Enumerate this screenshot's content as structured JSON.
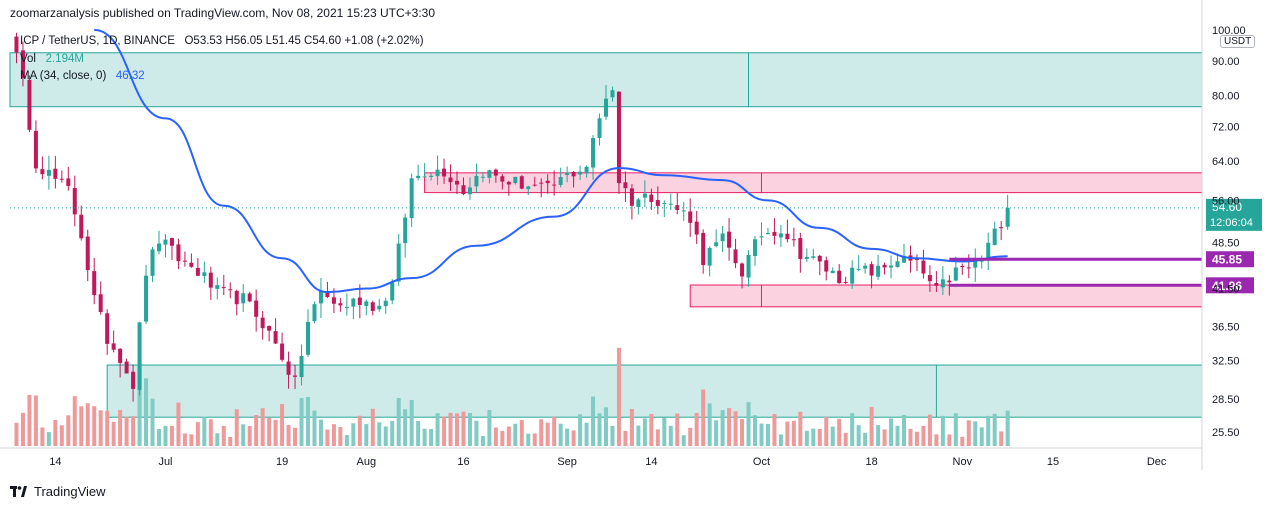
{
  "header": {
    "published": "zoomarzanalysis published on TradingView.com, Nov 08, 2021 15:23 UTC+3:30"
  },
  "legend": {
    "symbol": "ICP / TetherUS, 1D, BINANCE",
    "ohlc": "O53.53  H56.05  L51.45  C54.60  +1.08 (+2.02%)",
    "vol_label": "Vol",
    "vol_value": "2.194M",
    "ma_label": "MA (34, close, 0)",
    "ma_value": "46.32"
  },
  "price_badge": {
    "price": "54.60",
    "countdown": "12:06:04"
  },
  "currency_button": "USDT",
  "footer": {
    "brand": "TradingView"
  },
  "colors": {
    "up": "#26a69a",
    "down": "#c2185b",
    "vol_up": "#80cbc4",
    "vol_down": "#ef9a9a",
    "ma": "#2962ff",
    "support": "#9c27b0",
    "zone_green": "#26a69a",
    "zone_pink": "#e91e63"
  },
  "chart_data": {
    "type": "candlestick",
    "y_scale": "log",
    "ylim": [
      24.3,
      102
    ],
    "y_ticks": [
      "100.00",
      "90.00",
      "80.00",
      "72.00",
      "64.00",
      "56.00",
      "48.50",
      "41.50",
      "36.50",
      "32.50",
      "28.50",
      "25.50"
    ],
    "x_ticks": [
      "14",
      "Jul",
      "19",
      "Aug",
      "16",
      "Sep",
      "14",
      "Oct",
      "18",
      "Nov",
      "15",
      "Dec"
    ],
    "x_range": [
      "2021-06-07",
      "2021-12-08"
    ],
    "last_price": 54.6,
    "horizontal_levels": [
      {
        "label": "45.85",
        "value": 45.85,
        "color": "#9c27b0"
      },
      {
        "label": "41.96",
        "value": 41.96,
        "color": "#9c27b0"
      }
    ],
    "zones": [
      {
        "color": "green",
        "from": "2021-06-07",
        "to": "2021-12-08",
        "low": 77.0,
        "high": 92.5,
        "split": "2021-09-29"
      },
      {
        "color": "pink",
        "from": "2021-08-10",
        "to": "2021-12-08",
        "low": 57.5,
        "high": 61.5,
        "split": "2021-10-01"
      },
      {
        "color": "pink",
        "from": "2021-09-20",
        "to": "2021-12-08",
        "low": 39.0,
        "high": 42.0,
        "split": "2021-10-01"
      },
      {
        "color": "green",
        "from": "2021-06-22",
        "to": "2021-12-08",
        "low": 26.8,
        "high": 32.0,
        "split": "2021-10-28"
      }
    ],
    "close_anchors": [
      [
        "2021-06-07",
        100
      ],
      [
        "2021-06-09",
        83
      ],
      [
        "2021-06-11",
        64
      ],
      [
        "2021-06-14",
        60
      ],
      [
        "2021-06-16",
        58
      ],
      [
        "2021-06-18",
        50
      ],
      [
        "2021-06-20",
        40
      ],
      [
        "2021-06-22",
        35
      ],
      [
        "2021-06-24",
        33
      ],
      [
        "2021-06-26",
        30
      ],
      [
        "2021-06-28",
        44
      ],
      [
        "2021-06-30",
        49
      ],
      [
        "2021-07-03",
        46
      ],
      [
        "2021-07-06",
        44
      ],
      [
        "2021-07-09",
        41
      ],
      [
        "2021-07-13",
        40
      ],
      [
        "2021-07-16",
        37
      ],
      [
        "2021-07-19",
        33
      ],
      [
        "2021-07-21",
        30
      ],
      [
        "2021-07-23",
        37
      ],
      [
        "2021-07-25",
        41
      ],
      [
        "2021-07-28",
        39
      ],
      [
        "2021-07-31",
        40
      ],
      [
        "2021-08-03",
        39
      ],
      [
        "2021-08-05",
        42
      ],
      [
        "2021-08-08",
        60
      ],
      [
        "2021-08-10",
        62
      ],
      [
        "2021-08-13",
        62
      ],
      [
        "2021-08-16",
        58
      ],
      [
        "2021-08-19",
        62
      ],
      [
        "2021-08-22",
        60
      ],
      [
        "2021-08-26",
        59
      ],
      [
        "2021-08-29",
        58
      ],
      [
        "2021-09-01",
        61
      ],
      [
        "2021-09-04",
        63
      ],
      [
        "2021-09-07",
        80
      ],
      [
        "2021-09-08",
        82
      ],
      [
        "2021-09-09",
        60
      ],
      [
        "2021-09-11",
        56
      ],
      [
        "2021-09-14",
        57
      ],
      [
        "2021-09-17",
        55
      ],
      [
        "2021-09-20",
        53
      ],
      [
        "2021-09-22",
        46
      ],
      [
        "2021-09-25",
        49
      ],
      [
        "2021-09-28",
        44
      ],
      [
        "2021-10-01",
        50
      ],
      [
        "2021-10-04",
        51
      ],
      [
        "2021-10-07",
        47
      ],
      [
        "2021-10-10",
        45
      ],
      [
        "2021-10-13",
        43
      ],
      [
        "2021-10-16",
        44
      ],
      [
        "2021-10-19",
        44
      ],
      [
        "2021-10-22",
        46
      ],
      [
        "2021-10-25",
        45
      ],
      [
        "2021-10-28",
        41
      ],
      [
        "2021-10-31",
        44
      ],
      [
        "2021-11-02",
        44.5
      ],
      [
        "2021-11-04",
        46
      ],
      [
        "2021-11-06",
        50
      ],
      [
        "2021-11-08",
        54.6
      ]
    ],
    "ma_anchors": [
      [
        "2021-06-20",
        100
      ],
      [
        "2021-07-01",
        74
      ],
      [
        "2021-07-10",
        55
      ],
      [
        "2021-07-19",
        46
      ],
      [
        "2021-07-26",
        41
      ],
      [
        "2021-08-01",
        41.5
      ],
      [
        "2021-08-08",
        43
      ],
      [
        "2021-08-18",
        48
      ],
      [
        "2021-08-30",
        53
      ],
      [
        "2021-09-09",
        62.5
      ],
      [
        "2021-09-16",
        61
      ],
      [
        "2021-09-25",
        60
      ],
      [
        "2021-10-02",
        56
      ],
      [
        "2021-10-10",
        51
      ],
      [
        "2021-10-18",
        47.5
      ],
      [
        "2021-10-25",
        46
      ],
      [
        "2021-11-01",
        45.5
      ],
      [
        "2021-11-08",
        46.32
      ]
    ]
  }
}
